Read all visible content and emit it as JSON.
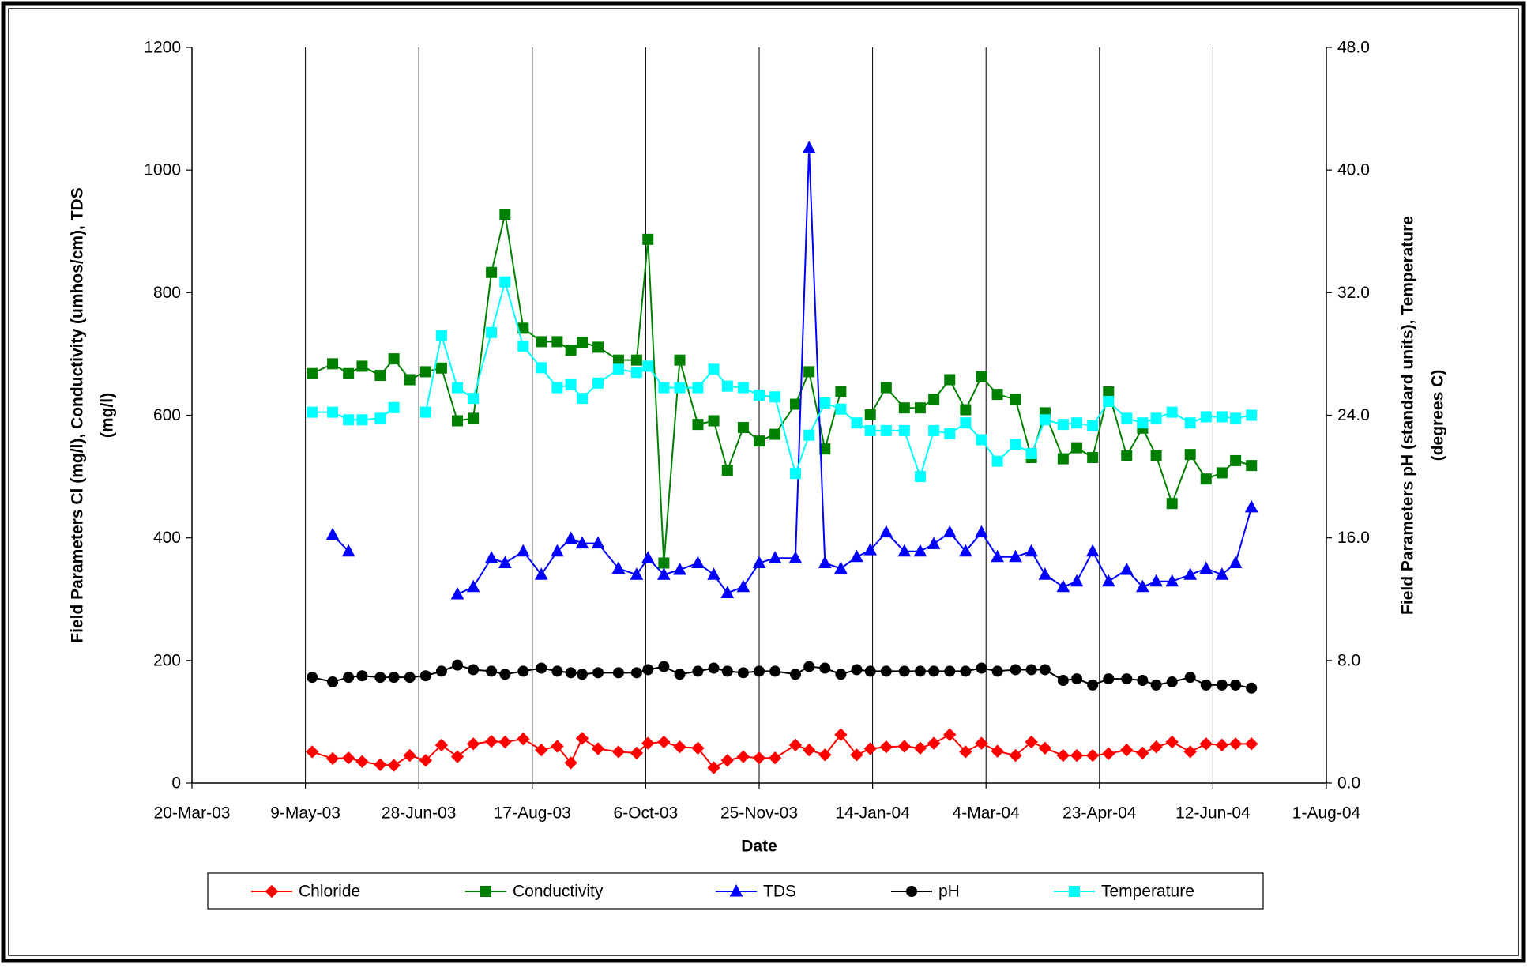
{
  "chart_data": {
    "type": "line",
    "x": [
      "2003-05-12",
      "2003-05-21",
      "2003-05-28",
      "2003-06-03",
      "2003-06-11",
      "2003-06-17",
      "2003-06-24",
      "2003-07-01",
      "2003-07-08",
      "2003-07-15",
      "2003-07-22",
      "2003-07-30",
      "2003-08-05",
      "2003-08-13",
      "2003-08-21",
      "2003-08-28",
      "2003-09-03",
      "2003-09-08",
      "2003-09-15",
      "2003-09-24",
      "2003-10-02",
      "2003-10-07",
      "2003-10-14",
      "2003-10-21",
      "2003-10-29",
      "2003-11-05",
      "2003-11-11",
      "2003-11-18",
      "2003-11-25",
      "2003-12-02",
      "2003-12-11",
      "2003-12-17",
      "2003-12-24",
      "2003-12-31",
      "2004-01-07",
      "2004-01-13",
      "2004-01-20",
      "2004-01-28",
      "2004-02-04",
      "2004-02-10",
      "2004-02-17",
      "2004-02-24",
      "2004-03-02",
      "2004-03-09",
      "2004-03-17",
      "2004-03-24",
      "2004-03-30",
      "2004-04-07",
      "2004-04-13",
      "2004-04-20",
      "2004-04-27",
      "2004-05-05",
      "2004-05-12",
      "2004-05-18",
      "2004-05-25",
      "2004-06-02",
      "2004-06-09",
      "2004-06-16",
      "2004-06-22",
      "2004-06-29"
    ],
    "series": [
      {
        "name": "Chloride",
        "color": "#ff0000",
        "marker": "diamond",
        "axis": "y",
        "values": [
          51,
          40,
          41,
          35,
          30,
          29,
          45,
          37,
          62,
          43,
          64,
          68,
          67,
          72,
          54,
          60,
          33,
          73,
          56,
          51,
          49,
          65,
          67,
          59,
          57,
          25,
          37,
          43,
          41,
          41,
          62,
          54,
          46,
          79,
          46,
          56,
          59,
          60,
          57,
          65,
          79,
          51,
          65,
          52,
          45,
          67,
          57,
          45,
          45,
          45,
          48,
          54,
          49,
          59,
          67,
          51,
          64,
          62,
          64,
          64
        ]
      },
      {
        "name": "Conductivity",
        "color": "#008000",
        "marker": "square",
        "axis": "y",
        "values": [
          668,
          684,
          668,
          680,
          665,
          692,
          658,
          671,
          677,
          591,
          595,
          833,
          928,
          742,
          720,
          720,
          706,
          719,
          711,
          690,
          690,
          887,
          359,
          690,
          585,
          591,
          510,
          580,
          558,
          569,
          618,
          671,
          545,
          639,
          null,
          601,
          645,
          612,
          612,
          626,
          658,
          609,
          663,
          634,
          626,
          531,
          604,
          529,
          547,
          531,
          638,
          534,
          579,
          534,
          456,
          536,
          496,
          506,
          526,
          518
        ]
      },
      {
        "name": "TDS",
        "color": "#0000ff",
        "marker": "triangle",
        "axis": "y",
        "values": [
          null,
          405,
          378,
          null,
          null,
          null,
          null,
          null,
          null,
          308,
          320,
          367,
          359,
          378,
          340,
          378,
          399,
          391,
          391,
          350,
          340,
          367,
          340,
          348,
          359,
          340,
          310,
          320,
          359,
          367,
          367,
          1036,
          359,
          350,
          369,
          380,
          409,
          378,
          378,
          390,
          409,
          378,
          409,
          369,
          369,
          378,
          340,
          320,
          329,
          378,
          329,
          348,
          320,
          329,
          329,
          340,
          350,
          340,
          359,
          450
        ]
      },
      {
        "name": "pH",
        "color": "#000000",
        "marker": "circle",
        "axis": "y2",
        "values": [
          6.9,
          6.6,
          6.9,
          7.0,
          6.9,
          6.9,
          6.9,
          7.0,
          7.3,
          7.7,
          7.4,
          7.3,
          7.1,
          7.3,
          7.5,
          7.3,
          7.2,
          7.1,
          7.2,
          7.2,
          7.2,
          7.4,
          7.6,
          7.1,
          7.3,
          7.5,
          7.3,
          7.2,
          7.3,
          7.3,
          7.1,
          7.6,
          7.5,
          7.1,
          7.4,
          7.3,
          7.3,
          7.3,
          7.3,
          7.3,
          7.3,
          7.3,
          7.5,
          7.3,
          7.4,
          7.4,
          7.4,
          6.7,
          6.8,
          6.4,
          6.8,
          6.8,
          6.7,
          6.4,
          6.6,
          6.9,
          6.4,
          6.4,
          6.4,
          6.2
        ]
      },
      {
        "name": "Temperature",
        "color": "#00ffff",
        "marker": "square",
        "axis": "y2",
        "values": [
          24.2,
          24.2,
          23.7,
          23.7,
          23.8,
          24.5,
          null,
          24.2,
          29.2,
          25.8,
          25.1,
          29.4,
          32.7,
          28.5,
          27.1,
          25.8,
          26.0,
          25.1,
          26.1,
          27.0,
          26.8,
          27.2,
          25.8,
          25.8,
          25.8,
          27.0,
          25.9,
          25.8,
          25.3,
          25.2,
          20.2,
          22.7,
          24.8,
          24.4,
          23.5,
          23.0,
          23.0,
          23.0,
          20.0,
          23.0,
          22.8,
          23.5,
          22.4,
          21.0,
          22.1,
          21.5,
          23.7,
          23.4,
          23.5,
          23.3,
          24.9,
          23.8,
          23.5,
          23.8,
          24.2,
          23.5,
          23.9,
          23.9,
          23.8,
          24.0
        ]
      }
    ],
    "xlabel": "Date",
    "ylabel": [
      "Field Parameters Cl (mg/l), Conductivity (umhos/cm), TDS",
      "(mg/l)"
    ],
    "y2label": [
      "Field Parameters pH (standard units), Temperature",
      "(degrees C)"
    ],
    "xlim": [
      "2003-03-20",
      "2004-08-01"
    ],
    "xticks": [
      {
        "value": "2003-03-20",
        "label": "20-Mar-03"
      },
      {
        "value": "2003-05-09",
        "label": "9-May-03"
      },
      {
        "value": "2003-06-28",
        "label": "28-Jun-03"
      },
      {
        "value": "2003-08-17",
        "label": "17-Aug-03"
      },
      {
        "value": "2003-10-06",
        "label": "6-Oct-03"
      },
      {
        "value": "2003-11-25",
        "label": "25-Nov-03"
      },
      {
        "value": "2004-01-14",
        "label": "14-Jan-04"
      },
      {
        "value": "2004-03-04",
        "label": "4-Mar-04"
      },
      {
        "value": "2004-04-23",
        "label": "23-Apr-04"
      },
      {
        "value": "2004-06-12",
        "label": "12-Jun-04"
      },
      {
        "value": "2004-08-01",
        "label": "1-Aug-04"
      }
    ],
    "ylim": [
      0,
      1200
    ],
    "yticks": [
      0,
      200,
      400,
      600,
      800,
      1000,
      1200
    ],
    "y2lim": [
      0,
      48
    ],
    "y2ticks": [
      {
        "value": 0,
        "label": "0.0"
      },
      {
        "value": 8,
        "label": "8.0"
      },
      {
        "value": 16,
        "label": "16.0"
      },
      {
        "value": 24,
        "label": "24.0"
      },
      {
        "value": 32,
        "label": "32.0"
      },
      {
        "value": 40,
        "label": "40.0"
      },
      {
        "value": 48,
        "label": "48.0"
      }
    ],
    "grid": "x",
    "legend": "bottom"
  }
}
